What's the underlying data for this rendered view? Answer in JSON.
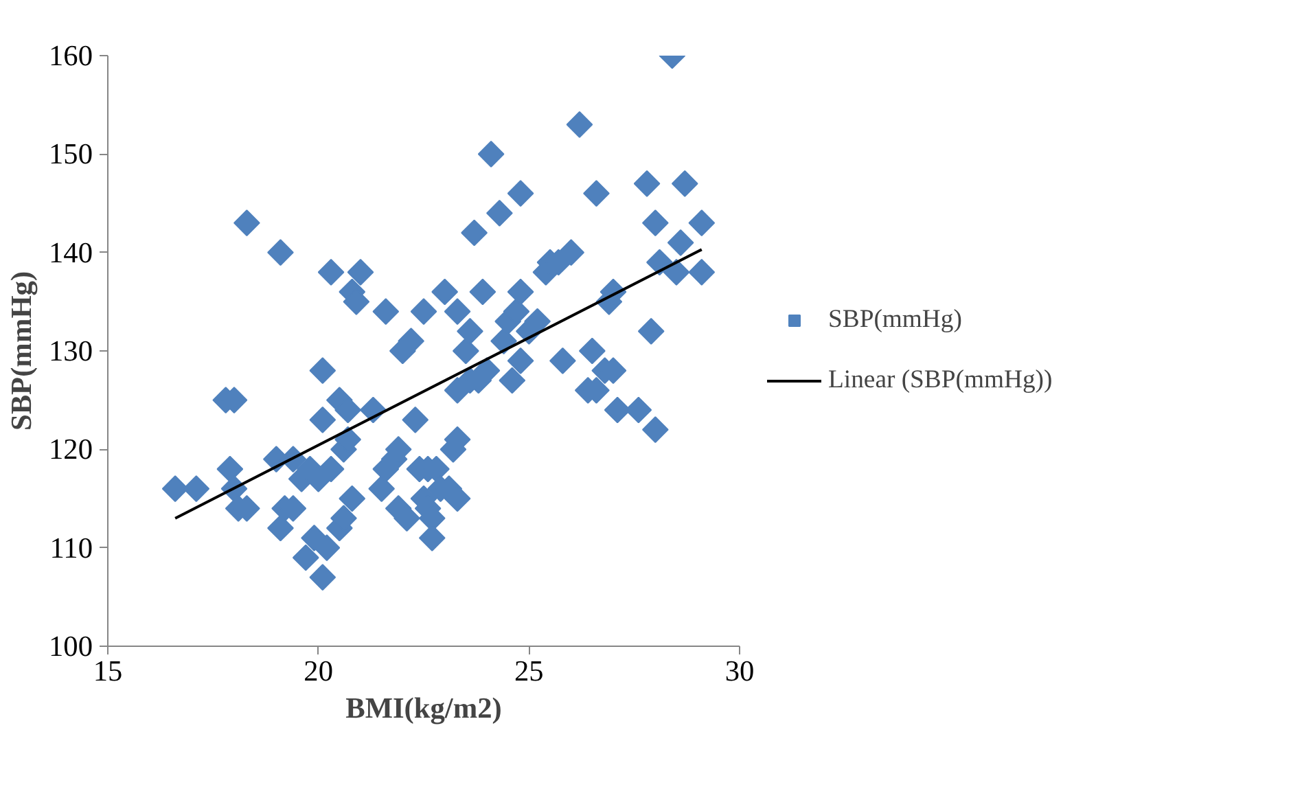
{
  "chart_data": {
    "type": "scatter",
    "xlabel": "BMI(kg/m2)",
    "ylabel": "SBP(mmHg)",
    "xlim": [
      15,
      30
    ],
    "xticks": [
      15,
      20,
      25,
      30
    ],
    "ylim": [
      100,
      160
    ],
    "yticks": [
      100,
      110,
      120,
      130,
      140,
      150,
      160
    ],
    "grid": false,
    "legend": "right",
    "marker": "diamond",
    "series": [
      {
        "name": "SBP(mmHg)",
        "color": "#4f81bd",
        "x": [
          16.6,
          17.1,
          17.8,
          18.0,
          17.9,
          18.0,
          18.1,
          18.3,
          18.3,
          19.1,
          19.0,
          19.1,
          19.2,
          19.4,
          19.4,
          19.6,
          19.7,
          19.8,
          19.9,
          20.1,
          20.0,
          20.1,
          20.1,
          20.2,
          20.3,
          20.3,
          20.5,
          20.5,
          20.6,
          20.6,
          20.7,
          20.7,
          20.8,
          20.8,
          20.9,
          21.0,
          21.3,
          21.5,
          21.6,
          21.6,
          21.8,
          21.9,
          21.9,
          22.0,
          22.1,
          22.2,
          22.3,
          22.4,
          22.5,
          22.5,
          22.6,
          22.6,
          22.7,
          22.7,
          22.8,
          22.9,
          23.0,
          23.1,
          23.2,
          23.3,
          23.3,
          23.3,
          23.3,
          23.5,
          23.6,
          23.6,
          23.7,
          23.8,
          23.9,
          24.0,
          24.1,
          24.3,
          24.4,
          24.5,
          24.6,
          24.7,
          24.8,
          24.8,
          24.8,
          25.0,
          25.2,
          25.4,
          25.5,
          25.7,
          25.8,
          26.0,
          26.2,
          26.4,
          26.5,
          26.6,
          26.6,
          26.8,
          26.9,
          27.0,
          27.0,
          27.1,
          27.6,
          27.8,
          27.9,
          28.0,
          28.0,
          28.1,
          28.4,
          28.5,
          28.6,
          28.7,
          29.1,
          29.1
        ],
        "values": [
          116,
          116,
          125,
          125,
          118,
          116,
          114,
          114,
          143,
          140,
          119,
          112,
          114,
          114,
          119,
          117,
          109,
          118,
          111,
          107,
          117,
          123,
          128,
          110,
          118,
          138,
          125,
          112,
          113,
          120,
          121,
          124,
          115,
          136,
          135,
          138,
          124,
          116,
          134,
          118,
          119,
          120,
          114,
          130,
          113,
          131,
          123,
          118,
          134,
          115,
          114,
          118,
          113,
          111,
          118,
          116,
          136,
          116,
          120,
          121,
          115,
          126,
          134,
          130,
          132,
          127,
          142,
          127,
          136,
          128,
          150,
          144,
          131,
          133,
          127,
          134,
          129,
          146,
          136,
          132,
          133,
          138,
          139,
          139,
          129,
          140,
          153,
          126,
          130,
          126,
          146,
          128,
          135,
          136,
          128,
          124,
          124,
          147,
          132,
          143,
          122,
          139,
          160,
          138,
          141,
          147,
          143,
          138
        ]
      },
      {
        "name": "Linear (SBP(mmHg))",
        "type": "line",
        "color": "#000000",
        "marker": "none",
        "line_style": "solid",
        "x": [
          16.6,
          29.1
        ],
        "values": [
          113.0,
          140.3
        ]
      }
    ]
  }
}
